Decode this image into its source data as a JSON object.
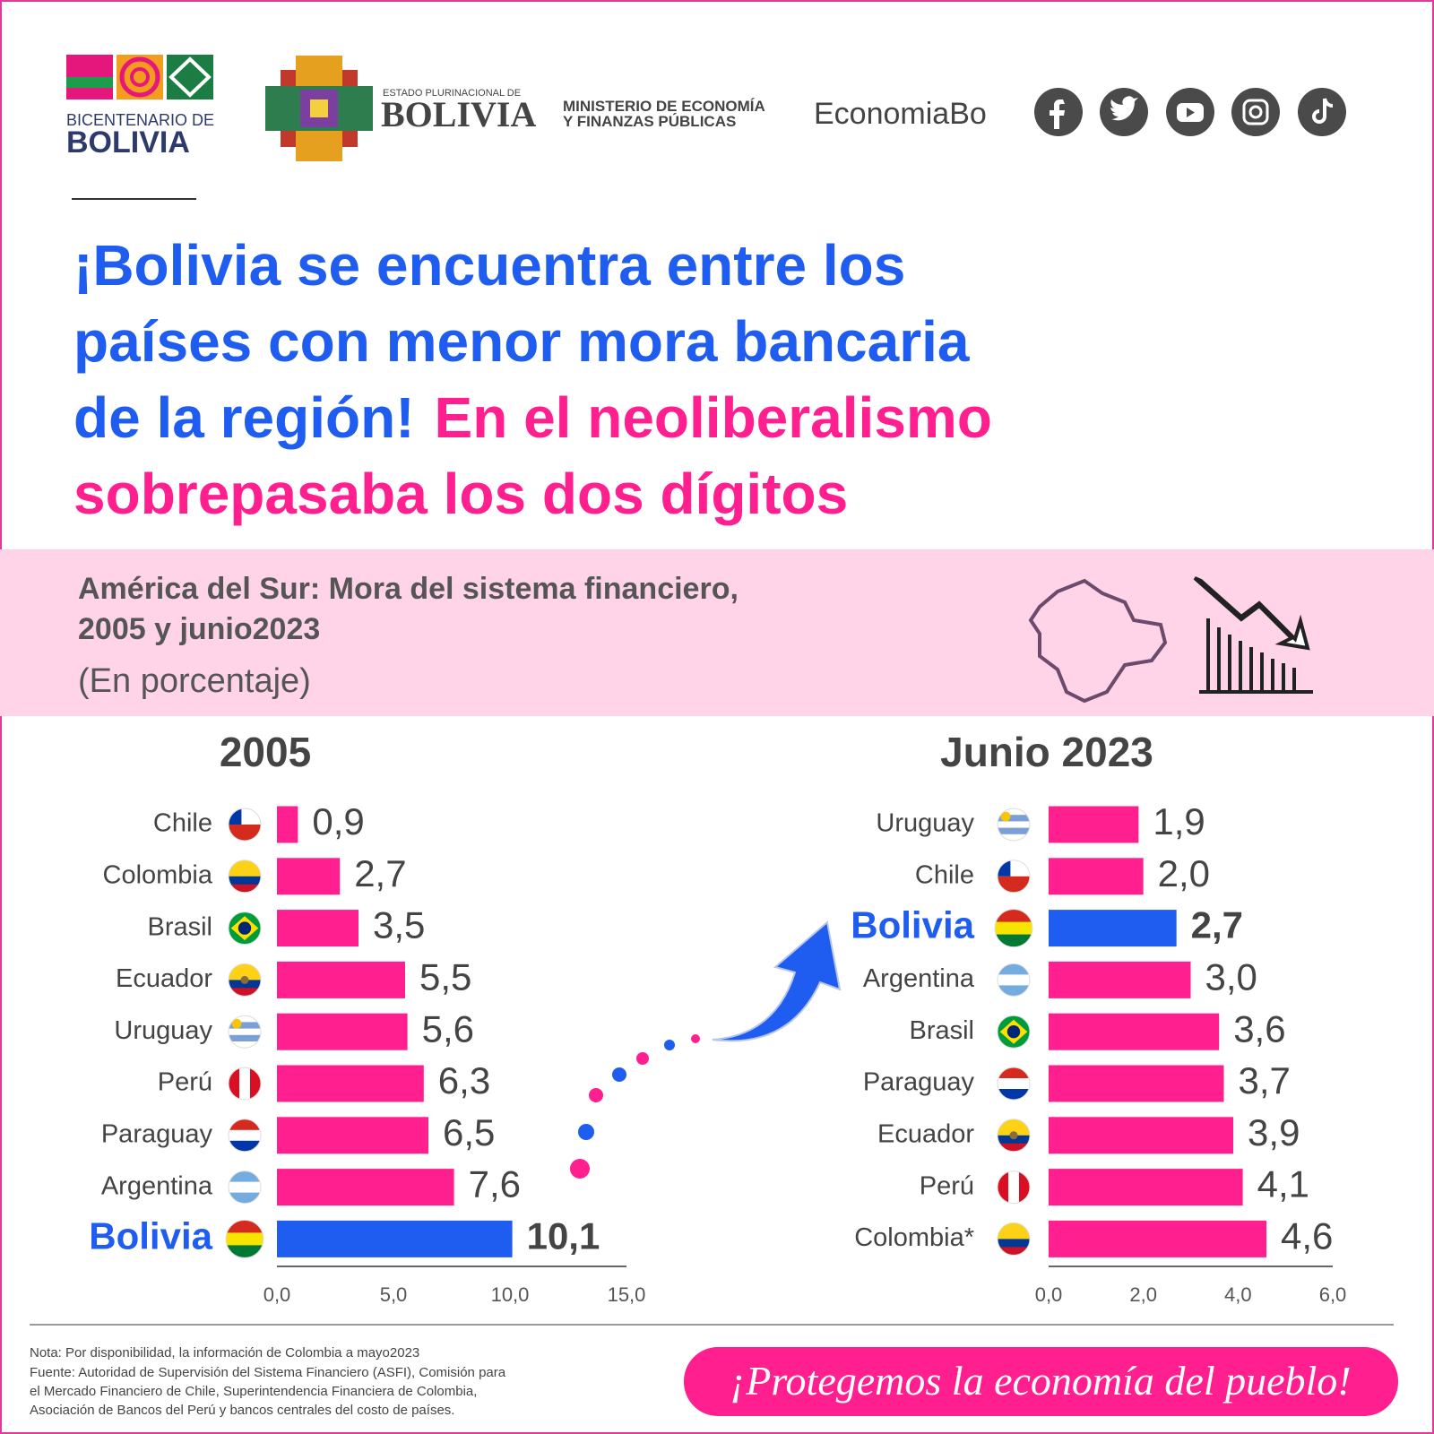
{
  "header": {
    "bicentenario_line1": "BICENTENARIO DE",
    "bicentenario_line2": "BOLIVIA",
    "estado_line1": "ESTADO PLURINACIONAL DE",
    "estado_line2": "BOLIVIA",
    "ministerio_line1": "MINISTERIO DE ECONOMÍA",
    "ministerio_line2": "Y FINANZAS PÚBLICAS",
    "handle": "EconomiaBo"
  },
  "headline": {
    "blue_lines": [
      "¡Bolivia se encuentra entre los",
      "países con menor mora bancaria",
      "de la región!"
    ],
    "pink_lines": [
      "En el neoliberalismo",
      "sobrepasaba los dos dígitos"
    ]
  },
  "subtitle": {
    "lines": [
      "América del Sur: Mora del sistema financiero,",
      "2005 y junio2023"
    ],
    "unit": "(En porcentaje)"
  },
  "chart_data": [
    {
      "type": "bar",
      "orientation": "horizontal",
      "title": "2005",
      "categories": [
        "Chile",
        "Colombia",
        "Brasil",
        "Ecuador",
        "Uruguay",
        "Perú",
        "Paraguay",
        "Argentina",
        "Bolivia"
      ],
      "values": [
        0.9,
        2.7,
        3.5,
        5.5,
        5.6,
        6.3,
        6.5,
        7.6,
        10.1
      ],
      "value_labels": [
        "0,9",
        "2,7",
        "3,5",
        "5,5",
        "5,6",
        "6,3",
        "6,5",
        "7,6",
        "10,1"
      ],
      "color": "#ff1f8f",
      "colors": [
        "#ff1f8f",
        "#ff1f8f",
        "#ff1f8f",
        "#ff1f8f",
        "#ff1f8f",
        "#ff1f8f",
        "#ff1f8f",
        "#ff1f8f",
        "#1f5cf0"
      ],
      "xlim": [
        0,
        15
      ],
      "xticks": [
        {
          "value": 0,
          "label": "0,0"
        },
        {
          "value": 5,
          "label": "5,0"
        },
        {
          "value": 10,
          "label": "10,0"
        },
        {
          "value": 15,
          "label": "15,0"
        }
      ]
    },
    {
      "type": "bar",
      "orientation": "horizontal",
      "title": "Junio 2023",
      "categories": [
        "Uruguay",
        "Chile",
        "Bolivia",
        "Argentina",
        "Brasil",
        "Paraguay",
        "Ecuador",
        "Perú",
        "Colombia*"
      ],
      "values": [
        1.9,
        2.0,
        2.7,
        3.0,
        3.6,
        3.7,
        3.9,
        4.1,
        4.6
      ],
      "value_labels": [
        "1,9",
        "2,0",
        "2,7",
        "3,0",
        "3,6",
        "3,7",
        "3,9",
        "4,1",
        "4,6"
      ],
      "color": "#ff1f8f",
      "colors": [
        "#ff1f8f",
        "#ff1f8f",
        "#1f5cf0",
        "#ff1f8f",
        "#ff1f8f",
        "#ff1f8f",
        "#ff1f8f",
        "#ff1f8f",
        "#ff1f8f"
      ],
      "xlim": [
        0,
        6
      ],
      "xticks": [
        {
          "value": 0,
          "label": "0,0"
        },
        {
          "value": 2,
          "label": "2,0"
        },
        {
          "value": 4,
          "label": "4,0"
        },
        {
          "value": 6,
          "label": "6,0"
        }
      ]
    }
  ],
  "footer": {
    "note": "Nota: Por disponibilidad, la información de Colombia a mayo2023",
    "source_lines": [
      "Fuente: Autoridad de Supervisión del Sistema Financiero (ASFI), Comisión para",
      "el Mercado Financiero de Chile, Superintendencia Financiera de Colombia,",
      "Asociación de Bancos del Perú y bancos centrales del costo de países."
    ],
    "slogan": "¡Protegemos la economía del pueblo!"
  }
}
